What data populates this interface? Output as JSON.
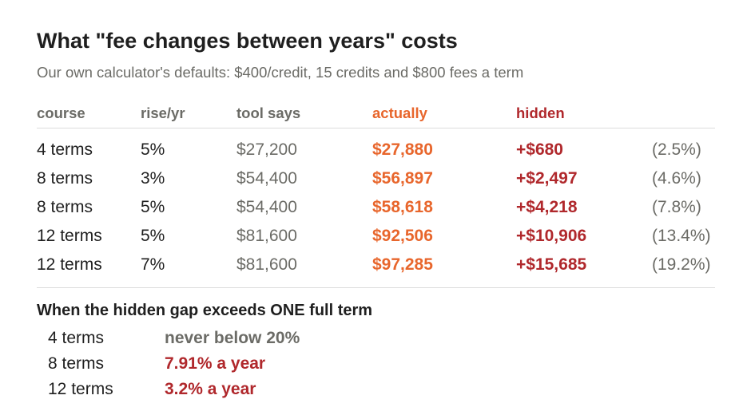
{
  "title": "What \"fee changes between years\" costs",
  "subtitle": "Our own calculator's defaults: $400/credit, 15 credits and $800 fees a term",
  "table": {
    "headers": [
      "course",
      "rise/yr",
      "tool says",
      "actually",
      "hidden"
    ],
    "rows": [
      {
        "course": "4 terms",
        "rise": "5%",
        "tool": "$27,200",
        "actual": "$27,880",
        "hidden": "+$680",
        "pct": "(2.5%)"
      },
      {
        "course": "8 terms",
        "rise": "3%",
        "tool": "$54,400",
        "actual": "$56,897",
        "hidden": "+$2,497",
        "pct": "(4.6%)"
      },
      {
        "course": "8 terms",
        "rise": "5%",
        "tool": "$54,400",
        "actual": "$58,618",
        "hidden": "+$4,218",
        "pct": "(7.8%)"
      },
      {
        "course": "12 terms",
        "rise": "5%",
        "tool": "$81,600",
        "actual": "$92,506",
        "hidden": "+$10,906",
        "pct": "(13.4%)"
      },
      {
        "course": "12 terms",
        "rise": "7%",
        "tool": "$81,600",
        "actual": "$97,285",
        "hidden": "+$15,685",
        "pct": "(19.2%)"
      }
    ]
  },
  "gap": {
    "title": "When the hidden gap exceeds ONE full term",
    "items": [
      {
        "course": "4 terms",
        "value": "never below 20%"
      },
      {
        "course": "8 terms",
        "value": "7.91% a year"
      },
      {
        "course": "12 terms",
        "value": "3.2% a year"
      }
    ]
  },
  "colors": {
    "actual": "#e8662c",
    "hidden": "#b0282c",
    "muted": "#6b6b66",
    "text": "#1f1f1f"
  }
}
